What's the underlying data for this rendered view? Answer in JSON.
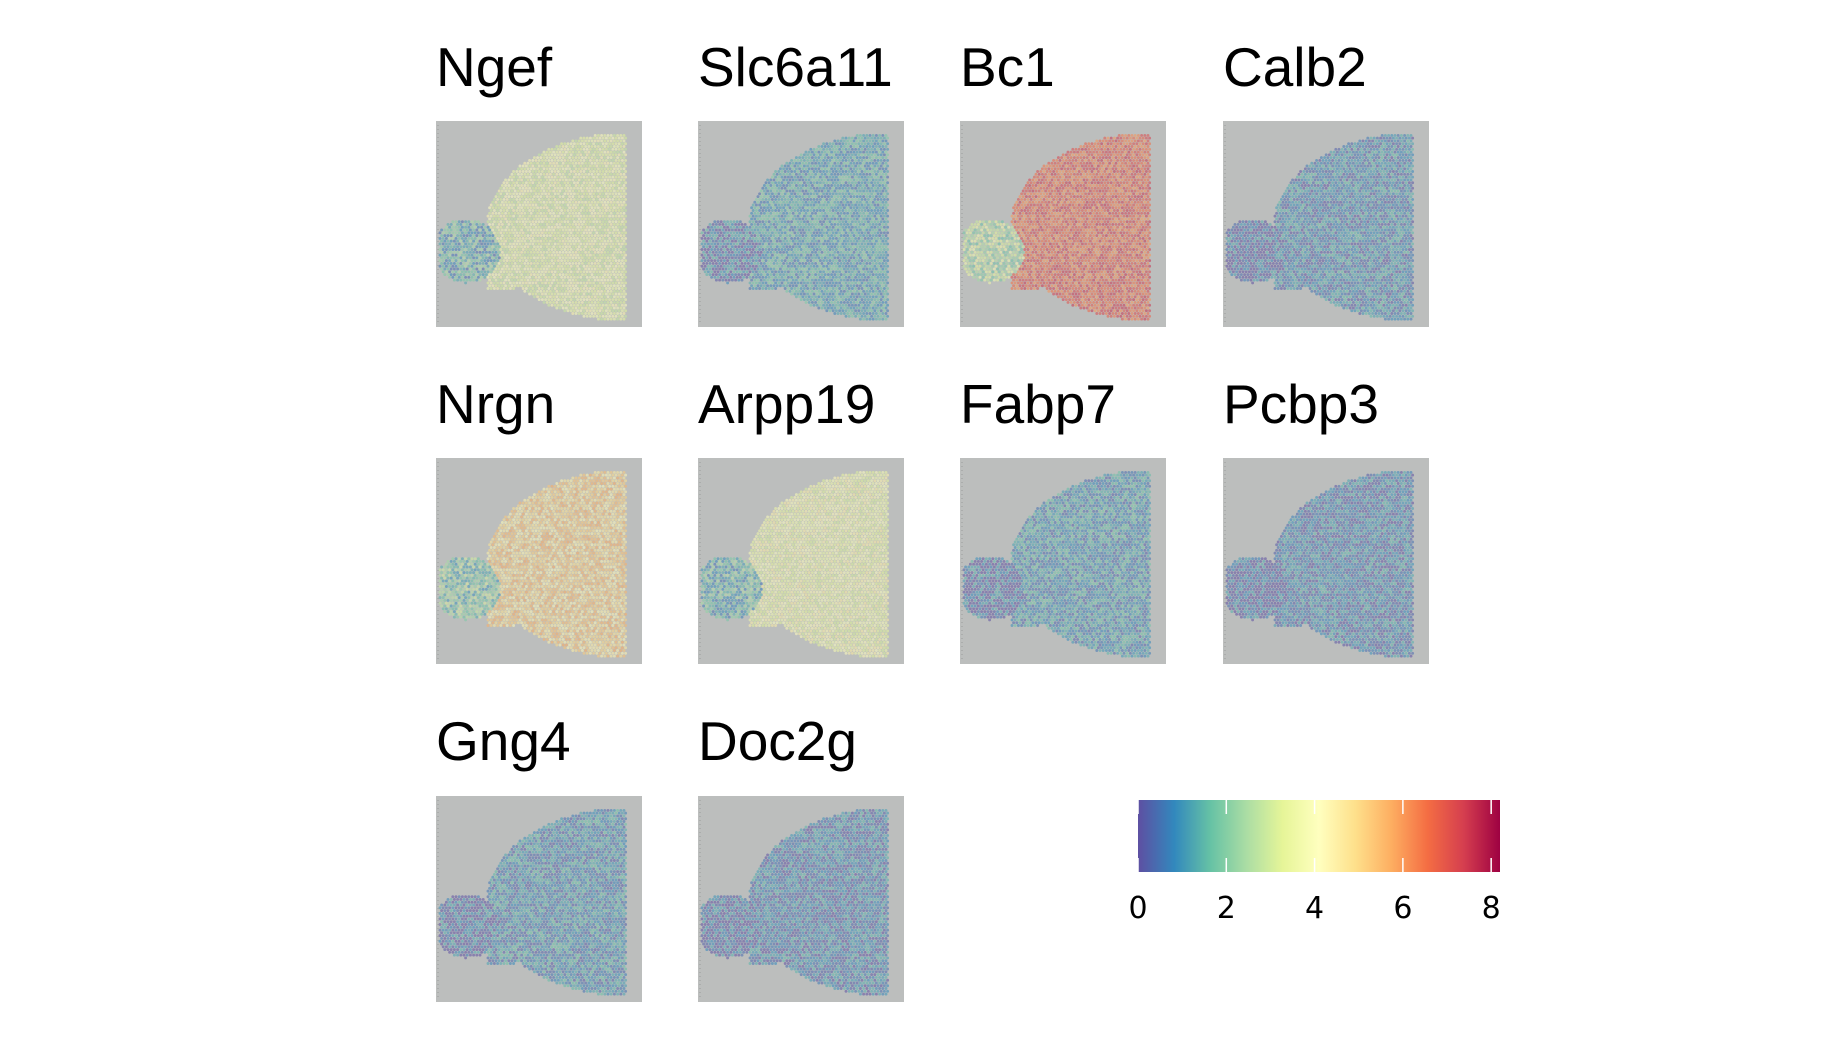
{
  "chart_data": {
    "type": "heatmap",
    "title": "",
    "panels": [
      {
        "gene": "Ngef",
        "level": 3.6,
        "palette_blend": "mixed"
      },
      {
        "gene": "Slc6a11",
        "level": 1.2,
        "palette_blend": "low"
      },
      {
        "gene": "Bc1",
        "level": 6.8,
        "palette_blend": "high"
      },
      {
        "gene": "Calb2",
        "level": 0.8,
        "palette_blend": "low"
      },
      {
        "gene": "Nrgn",
        "level": 5.0,
        "palette_blend": "mixed"
      },
      {
        "gene": "Arpp19",
        "level": 3.8,
        "palette_blend": "mixed"
      },
      {
        "gene": "Fabp7",
        "level": 1.0,
        "palette_blend": "low"
      },
      {
        "gene": "Pcbp3",
        "level": 0.7,
        "palette_blend": "low"
      },
      {
        "gene": "Gng4",
        "level": 0.9,
        "palette_blend": "low"
      },
      {
        "gene": "Doc2g",
        "level": 0.7,
        "palette_blend": "low"
      }
    ],
    "colorbar": {
      "min": 0,
      "max": 8.2,
      "ticks": [
        0,
        2,
        4,
        6,
        8
      ],
      "tick_labels": [
        "0",
        "2",
        "4",
        "6",
        "8"
      ],
      "palette": "Spectral (reversed)",
      "colors": [
        "#5e4fa2",
        "#3288bd",
        "#66c2a5",
        "#abdda4",
        "#e6f598",
        "#ffffbf",
        "#fee08b",
        "#fdae61",
        "#f46d43",
        "#d53e4f",
        "#9e0142"
      ]
    },
    "background_color": "#bcbebd"
  }
}
